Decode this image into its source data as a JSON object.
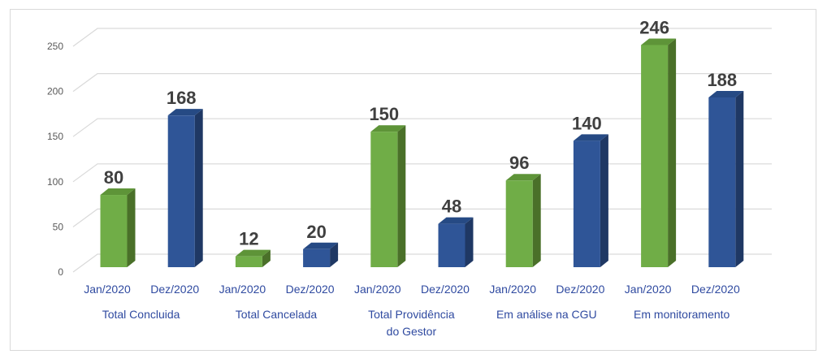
{
  "chart_data": {
    "type": "bar",
    "title": "",
    "xlabel": "",
    "ylabel": "",
    "ylim": [
      0,
      250
    ],
    "yticks": [
      0,
      50,
      100,
      150,
      200,
      250
    ],
    "grid": true,
    "style": "3d-column",
    "groups": [
      {
        "label_lines": [
          "Total  Concluida"
        ],
        "bars": [
          {
            "label": "Jan/2020",
            "value": 80
          },
          {
            "label": "Dez/2020",
            "value": 168
          }
        ]
      },
      {
        "label_lines": [
          "Total  Cancelada"
        ],
        "bars": [
          {
            "label": "Jan/2020",
            "value": 12
          },
          {
            "label": "Dez/2020",
            "value": 20
          }
        ]
      },
      {
        "label_lines": [
          "Total  Providência",
          "do Gestor"
        ],
        "bars": [
          {
            "label": "Jan/2020",
            "value": 150
          },
          {
            "label": "Dez/2020",
            "value": 48
          }
        ]
      },
      {
        "label_lines": [
          "Em análise na CGU"
        ],
        "bars": [
          {
            "label": "Jan/2020",
            "value": 96
          },
          {
            "label": "Dez/2020",
            "value": 140
          }
        ]
      },
      {
        "label_lines": [
          "Em monitoramento"
        ],
        "bars": [
          {
            "label": "Jan/2020",
            "value": 246
          },
          {
            "label": "Dez/2020",
            "value": 188
          }
        ]
      }
    ],
    "series_colors": {
      "Jan/2020": {
        "front": "#70ad47",
        "side": "#4a7029",
        "top": "#5e9438"
      },
      "Dez/2020": {
        "front": "#2f5597",
        "side": "#1f3864",
        "top": "#264a84"
      }
    },
    "colors": {
      "axis_text": "#595959",
      "category_text": "#2f4aa0",
      "value_text": "#404040",
      "grid": "#d9d9d9",
      "border": "#d9d9d9"
    }
  }
}
